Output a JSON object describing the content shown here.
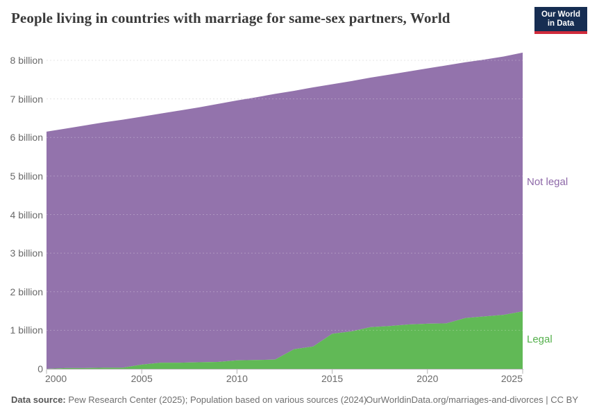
{
  "header": {
    "title": "People living in countries with marriage for same-sex partners, World",
    "logo": {
      "line1": "Our World",
      "line2": "in Data"
    }
  },
  "chart_data": {
    "type": "area",
    "stacked": true,
    "title": "People living in countries with marriage for same-sex partners, World",
    "xlabel": "",
    "ylabel": "",
    "unit_label": "billion",
    "x": [
      2000,
      2001,
      2002,
      2003,
      2004,
      2005,
      2006,
      2007,
      2008,
      2009,
      2010,
      2011,
      2012,
      2013,
      2014,
      2015,
      2016,
      2017,
      2018,
      2019,
      2020,
      2021,
      2022,
      2023,
      2024,
      2025
    ],
    "series": [
      {
        "name": "Legal",
        "color": "#61b956",
        "label_color": "#55b04c",
        "values": [
          0.0,
          0.02,
          0.02,
          0.03,
          0.03,
          0.11,
          0.16,
          0.16,
          0.17,
          0.18,
          0.22,
          0.23,
          0.24,
          0.51,
          0.58,
          0.91,
          0.97,
          1.08,
          1.11,
          1.15,
          1.17,
          1.18,
          1.32,
          1.36,
          1.4,
          1.49
        ]
      },
      {
        "name": "Not legal",
        "color": "#9373ac",
        "label_color": "#8d68a8",
        "values": [
          6.15,
          6.21,
          6.29,
          6.36,
          6.43,
          6.43,
          6.46,
          6.54,
          6.61,
          6.69,
          6.74,
          6.81,
          6.89,
          6.7,
          6.72,
          6.47,
          6.49,
          6.47,
          6.52,
          6.56,
          6.62,
          6.69,
          6.63,
          6.66,
          6.7,
          6.71
        ]
      }
    ],
    "world_total_billion": [
      6.15,
      6.23,
      6.31,
      6.39,
      6.46,
      6.54,
      6.62,
      6.7,
      6.78,
      6.87,
      6.96,
      7.04,
      7.13,
      7.21,
      7.3,
      7.38,
      7.46,
      7.55,
      7.63,
      7.71,
      7.79,
      7.87,
      7.95,
      8.02,
      8.1,
      8.2
    ],
    "ylim": [
      0,
      8.3
    ],
    "y_ticks": [
      {
        "value": 0,
        "label": "0"
      },
      {
        "value": 1,
        "label": "1 billion"
      },
      {
        "value": 2,
        "label": "2 billion"
      },
      {
        "value": 3,
        "label": "3 billion"
      },
      {
        "value": 4,
        "label": "4 billion"
      },
      {
        "value": 5,
        "label": "5 billion"
      },
      {
        "value": 6,
        "label": "6 billion"
      },
      {
        "value": 7,
        "label": "7 billion"
      },
      {
        "value": 8,
        "label": "8 billion"
      }
    ],
    "x_ticks": [
      "2000",
      "2005",
      "2010",
      "2015",
      "2020",
      "2025"
    ],
    "grid": "horizontal-dashed",
    "legend_position": "inline-right"
  },
  "footer": {
    "source_label": "Data source:",
    "source_text": "Pew Research Center (2025); Population based on various sources (2024)",
    "credit": "OurWorldinData.org/marriages-and-divorces | CC BY"
  }
}
